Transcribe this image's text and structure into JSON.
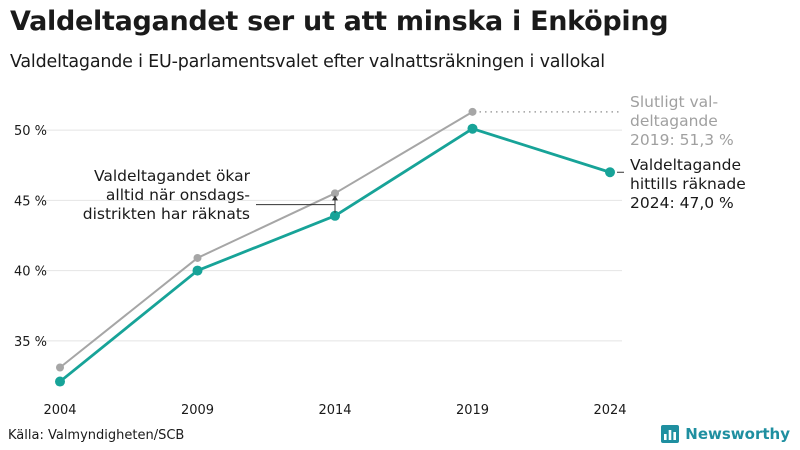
{
  "header": {
    "title": "Valdeltagandet ser ut att minska i Enköping",
    "subtitle": "Valdeltagande i EU-parlamentsvalet efter valnattsräkningen i vallokal"
  },
  "footer": {
    "source": "Källa: Valmyndigheten/SCB",
    "brand": "Newsworthy"
  },
  "colors": {
    "final_series": "#a6a6a6",
    "counted_series": "#17a398",
    "grid": "#e4e4e4",
    "annotation_gray": "#a0a0a0",
    "brand": "#1f8fa0"
  },
  "chart_data": {
    "type": "line",
    "x": [
      2004,
      2009,
      2014,
      2019,
      2024
    ],
    "ylim": [
      31,
      52.5
    ],
    "yticks": [
      35,
      40,
      45,
      50
    ],
    "ytick_labels": [
      "35 %",
      "40 %",
      "45 %",
      "50 %"
    ],
    "xtick_labels": [
      "2004",
      "2009",
      "2014",
      "2019",
      "2024"
    ],
    "grid": true,
    "series": [
      {
        "key": "final",
        "values": [
          33.1,
          40.9,
          45.5,
          51.3,
          null
        ]
      },
      {
        "key": "counted",
        "values": [
          32.1,
          40.0,
          43.9,
          50.1,
          47.0
        ]
      }
    ],
    "annotations": [
      {
        "key": "increase",
        "lines": [
          "Valdeltagandet ökar",
          "alltid när onsdags-",
          "distrikten har räknats"
        ]
      },
      {
        "key": "final2019",
        "lines": [
          "Slutligt val-",
          "deltagande",
          "2019: 51,3 %"
        ]
      },
      {
        "key": "counted2024",
        "lines": [
          "Valdeltagande",
          "hittills räknade",
          "2024: 47,0 %"
        ]
      }
    ]
  }
}
